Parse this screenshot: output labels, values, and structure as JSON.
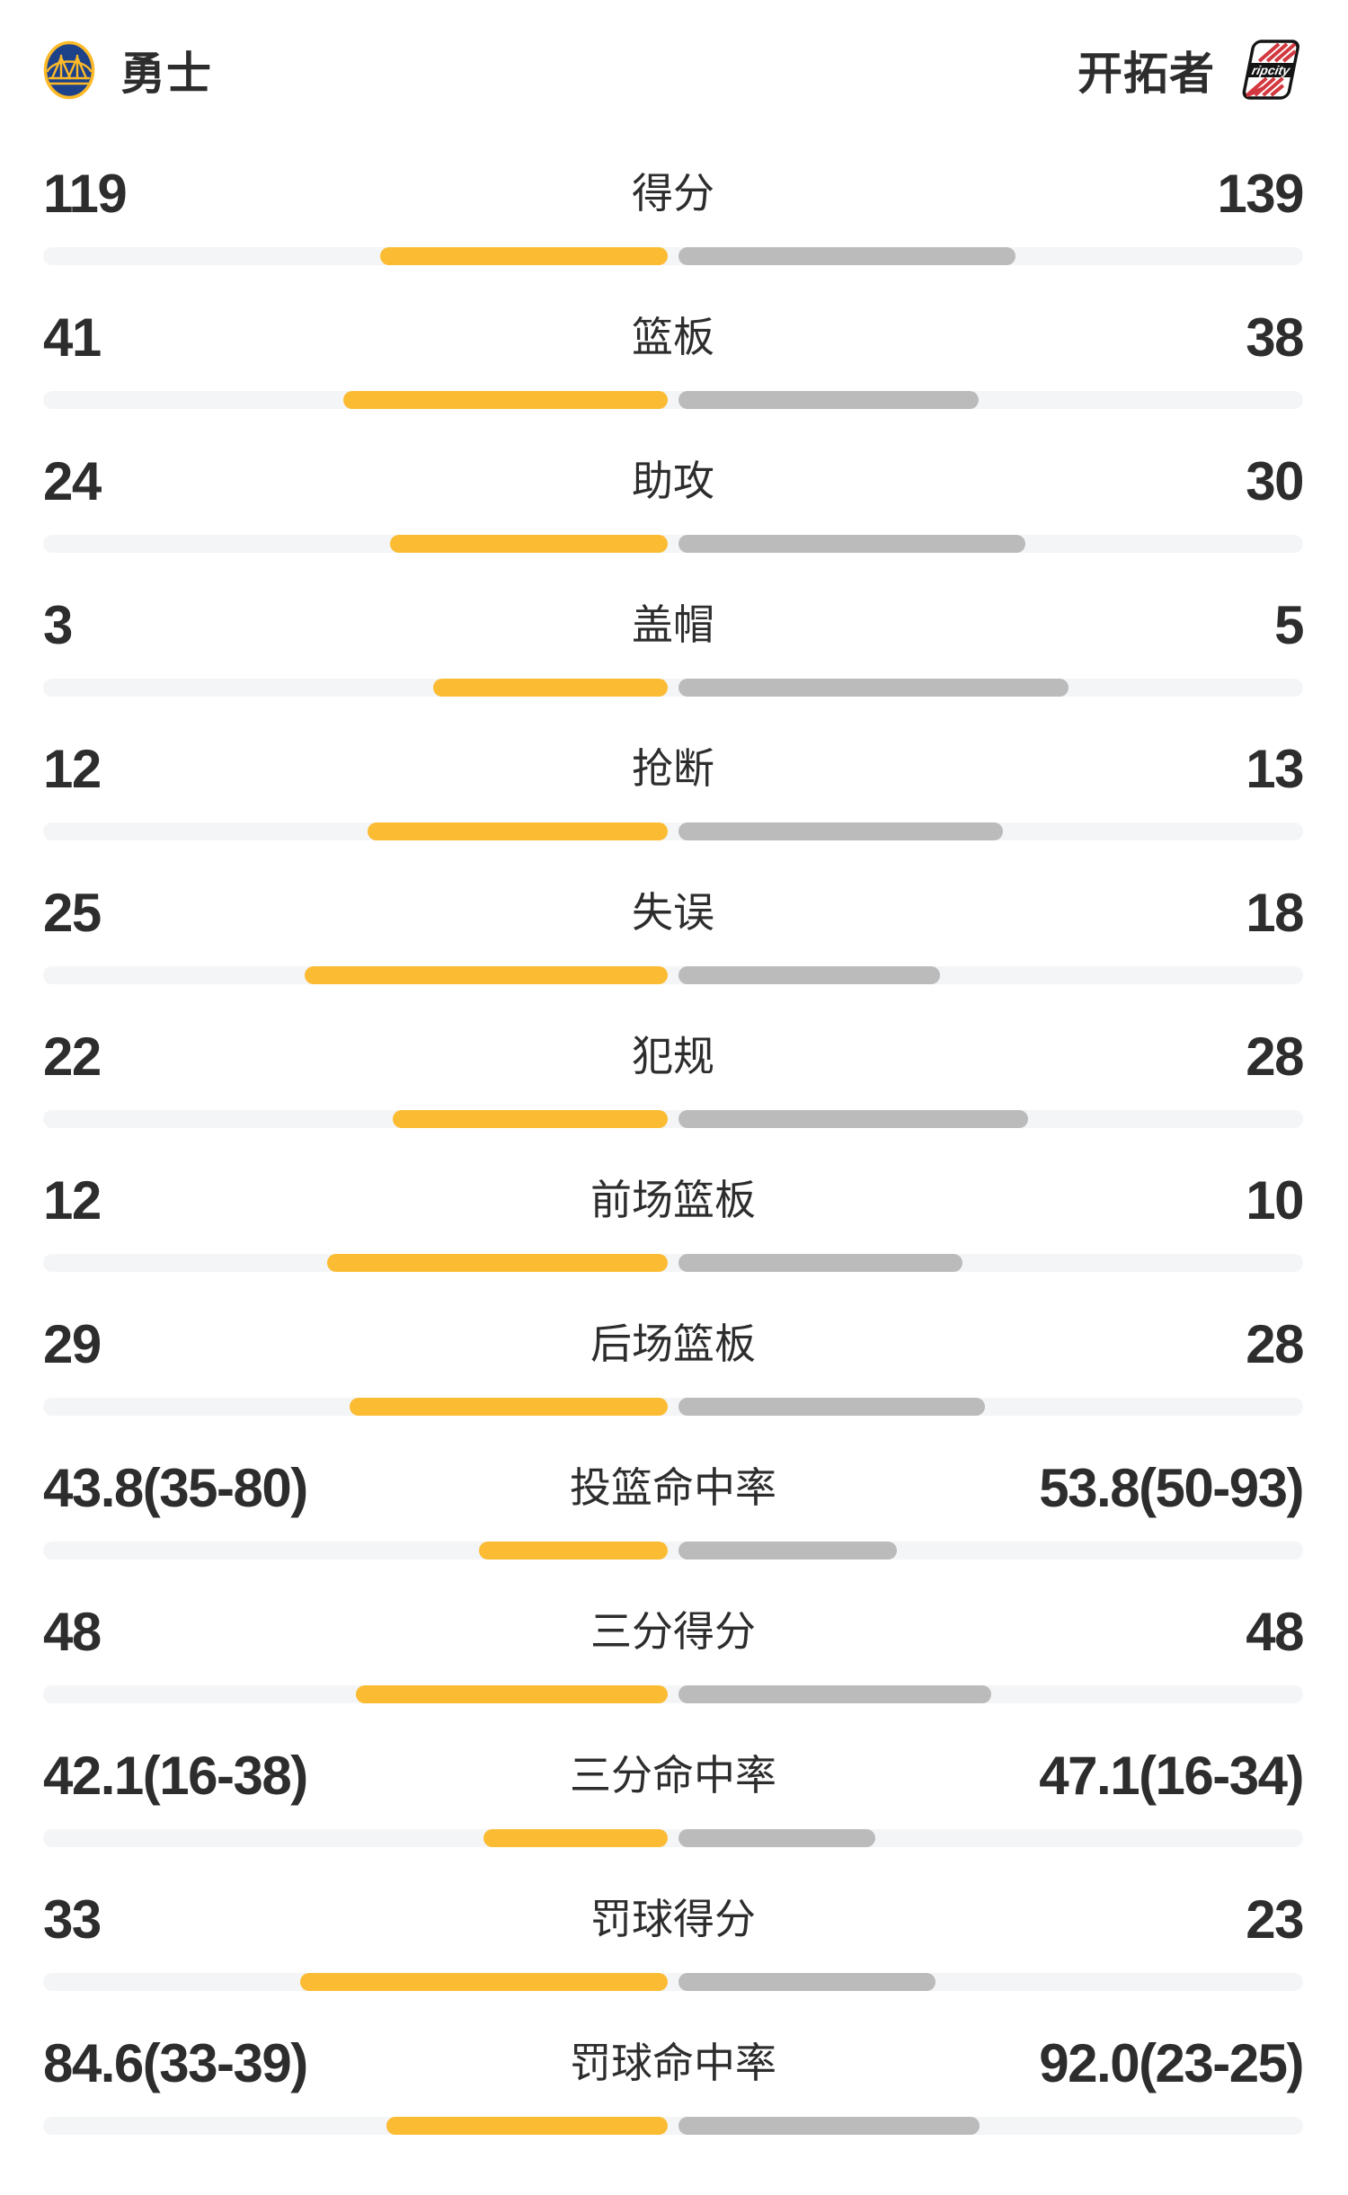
{
  "header": {
    "home_team": {
      "name": "勇士"
    },
    "away_team": {
      "name": "开拓者",
      "logo_text": "ripcity"
    }
  },
  "colors": {
    "home_bar": "#fbbc33",
    "away_bar": "#bbbbbb",
    "track": "#f4f5f7",
    "text_primary": "#2d2d2d",
    "warriors_blue": "#1d428a",
    "warriors_gold": "#fdb927",
    "blazers_red": "#d2383f",
    "blazers_black": "#141414"
  },
  "stats": [
    {
      "label": "得分",
      "home": "119",
      "away": "139",
      "home_bar_pct": 46.1,
      "away_bar_pct": 53.9
    },
    {
      "label": "篮板",
      "home": "41",
      "away": "38",
      "home_bar_pct": 51.9,
      "away_bar_pct": 48.1
    },
    {
      "label": "助攻",
      "home": "24",
      "away": "30",
      "home_bar_pct": 44.4,
      "away_bar_pct": 55.6
    },
    {
      "label": "盖帽",
      "home": "3",
      "away": "5",
      "home_bar_pct": 37.5,
      "away_bar_pct": 62.5
    },
    {
      "label": "抢断",
      "home": "12",
      "away": "13",
      "home_bar_pct": 48.0,
      "away_bar_pct": 52.0
    },
    {
      "label": "失误",
      "home": "25",
      "away": "18",
      "home_bar_pct": 58.1,
      "away_bar_pct": 41.9
    },
    {
      "label": "犯规",
      "home": "22",
      "away": "28",
      "home_bar_pct": 44.0,
      "away_bar_pct": 56.0
    },
    {
      "label": "前场篮板",
      "home": "12",
      "away": "10",
      "home_bar_pct": 54.5,
      "away_bar_pct": 45.5
    },
    {
      "label": "后场篮板",
      "home": "29",
      "away": "28",
      "home_bar_pct": 50.9,
      "away_bar_pct": 49.1
    },
    {
      "label": "投篮命中率",
      "home": "43.8(35-80)",
      "away": "53.8(50-93)",
      "home_bar_pct": 30.2,
      "away_bar_pct": 34.9
    },
    {
      "label": "三分得分",
      "home": "48",
      "away": "48",
      "home_bar_pct": 50.0,
      "away_bar_pct": 50.0
    },
    {
      "label": "三分命中率",
      "home": "42.1(16-38)",
      "away": "47.1(16-34)",
      "home_bar_pct": 29.5,
      "away_bar_pct": 31.5
    },
    {
      "label": "罚球得分",
      "home": "33",
      "away": "23",
      "home_bar_pct": 58.9,
      "away_bar_pct": 41.1
    },
    {
      "label": "罚球命中率",
      "home": "84.6(33-39)",
      "away": "92.0(23-25)",
      "home_bar_pct": 45.1,
      "away_bar_pct": 48.2
    }
  ]
}
